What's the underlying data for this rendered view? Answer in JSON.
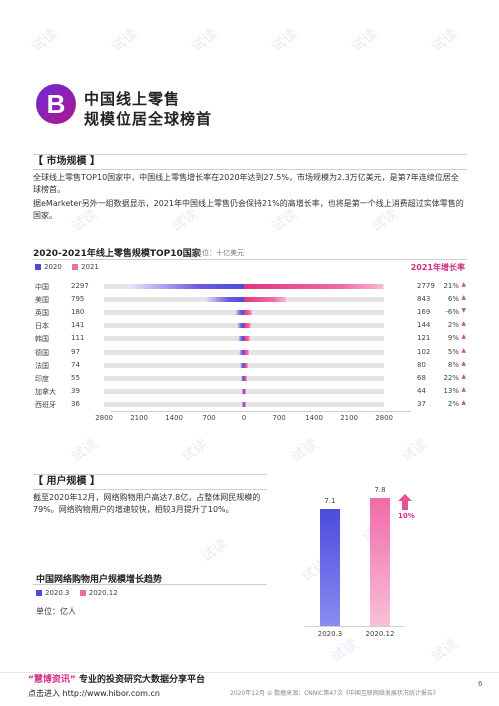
{
  "header": {
    "badge_letter": "B",
    "title_line1": "中国线上零售",
    "title_line2": "规模位居全球榜首"
  },
  "market": {
    "section_label": "【 市场规模 】",
    "para1": "全球线上零售TOP10国家中，中国线上零售增长率在2020年达到27.5%，市场规模为2.3万亿美元，是第7年连续位居全球榜首。",
    "para2": "据eMarketer另外一组数据显示，2021年中国线上零售仍会保持21%的高增长率，也将是第一个线上消费超过实体零售的国家。"
  },
  "chart_data": [
    {
      "type": "bar",
      "title": "2020-2021年线上零售规模TOP10国家",
      "unit": "单位：十亿美元",
      "legend": [
        "2020",
        "2021"
      ],
      "growth_header": "2021年增长率",
      "categories": [
        "中国",
        "美国",
        "英国",
        "日本",
        "韩国",
        "德国",
        "法国",
        "印度",
        "加拿大",
        "西班牙"
      ],
      "series": [
        {
          "name": "2020",
          "values": [
            2297,
            795,
            180,
            141,
            111,
            97,
            74,
            55,
            39,
            36
          ]
        },
        {
          "name": "2021",
          "values": [
            2779,
            843,
            169,
            144,
            121,
            102,
            80,
            68,
            44,
            37
          ]
        }
      ],
      "growth": [
        "21%",
        "6%",
        "-6%",
        "2%",
        "9%",
        "5%",
        "8%",
        "22%",
        "13%",
        "2%"
      ],
      "axis_ticks_left": [
        "2800",
        "2100",
        "1400",
        "700"
      ],
      "axis_ticks_right": [
        "0",
        "700",
        "1400",
        "2100",
        "2800"
      ],
      "xlim": [
        -2800,
        2800
      ]
    },
    {
      "type": "bar",
      "title": "中国网络购物用户规模增长趋势",
      "unit": "单位：亿人",
      "legend": [
        "2020.3",
        "2020.12"
      ],
      "categories": [
        "2020.3",
        "2020.12"
      ],
      "values": [
        7.1,
        7.8
      ],
      "value_labels": [
        "7.1",
        "7.8"
      ],
      "growth": "10%",
      "ylim": [
        0,
        8.5
      ]
    }
  ],
  "users": {
    "section_label": "【 用户规模 】",
    "para": "截至2020年12月，网络购物用户高达7.8亿，占整体网民规模的79%。网络购物用户的增速较快，相较3月提升了10%。"
  },
  "footer": {
    "brand_quote": "“慧博资讯”",
    "slogan": " 专业的投资研究大数据分享平台",
    "link": "点击进入 http://www.hibor.com.cn",
    "source": "2020年12月   ② 数据来源：CNNIC第47次《中国互联网络发展状况统计报告》",
    "page": "6"
  },
  "watermark": "试读",
  "colors": {
    "accent": "#d42b84",
    "blue": "#4b4bdc",
    "pink": "#f06aa8",
    "badge_gradient_start": "#6a2bd8",
    "badge_gradient_end": "#b0168c"
  }
}
